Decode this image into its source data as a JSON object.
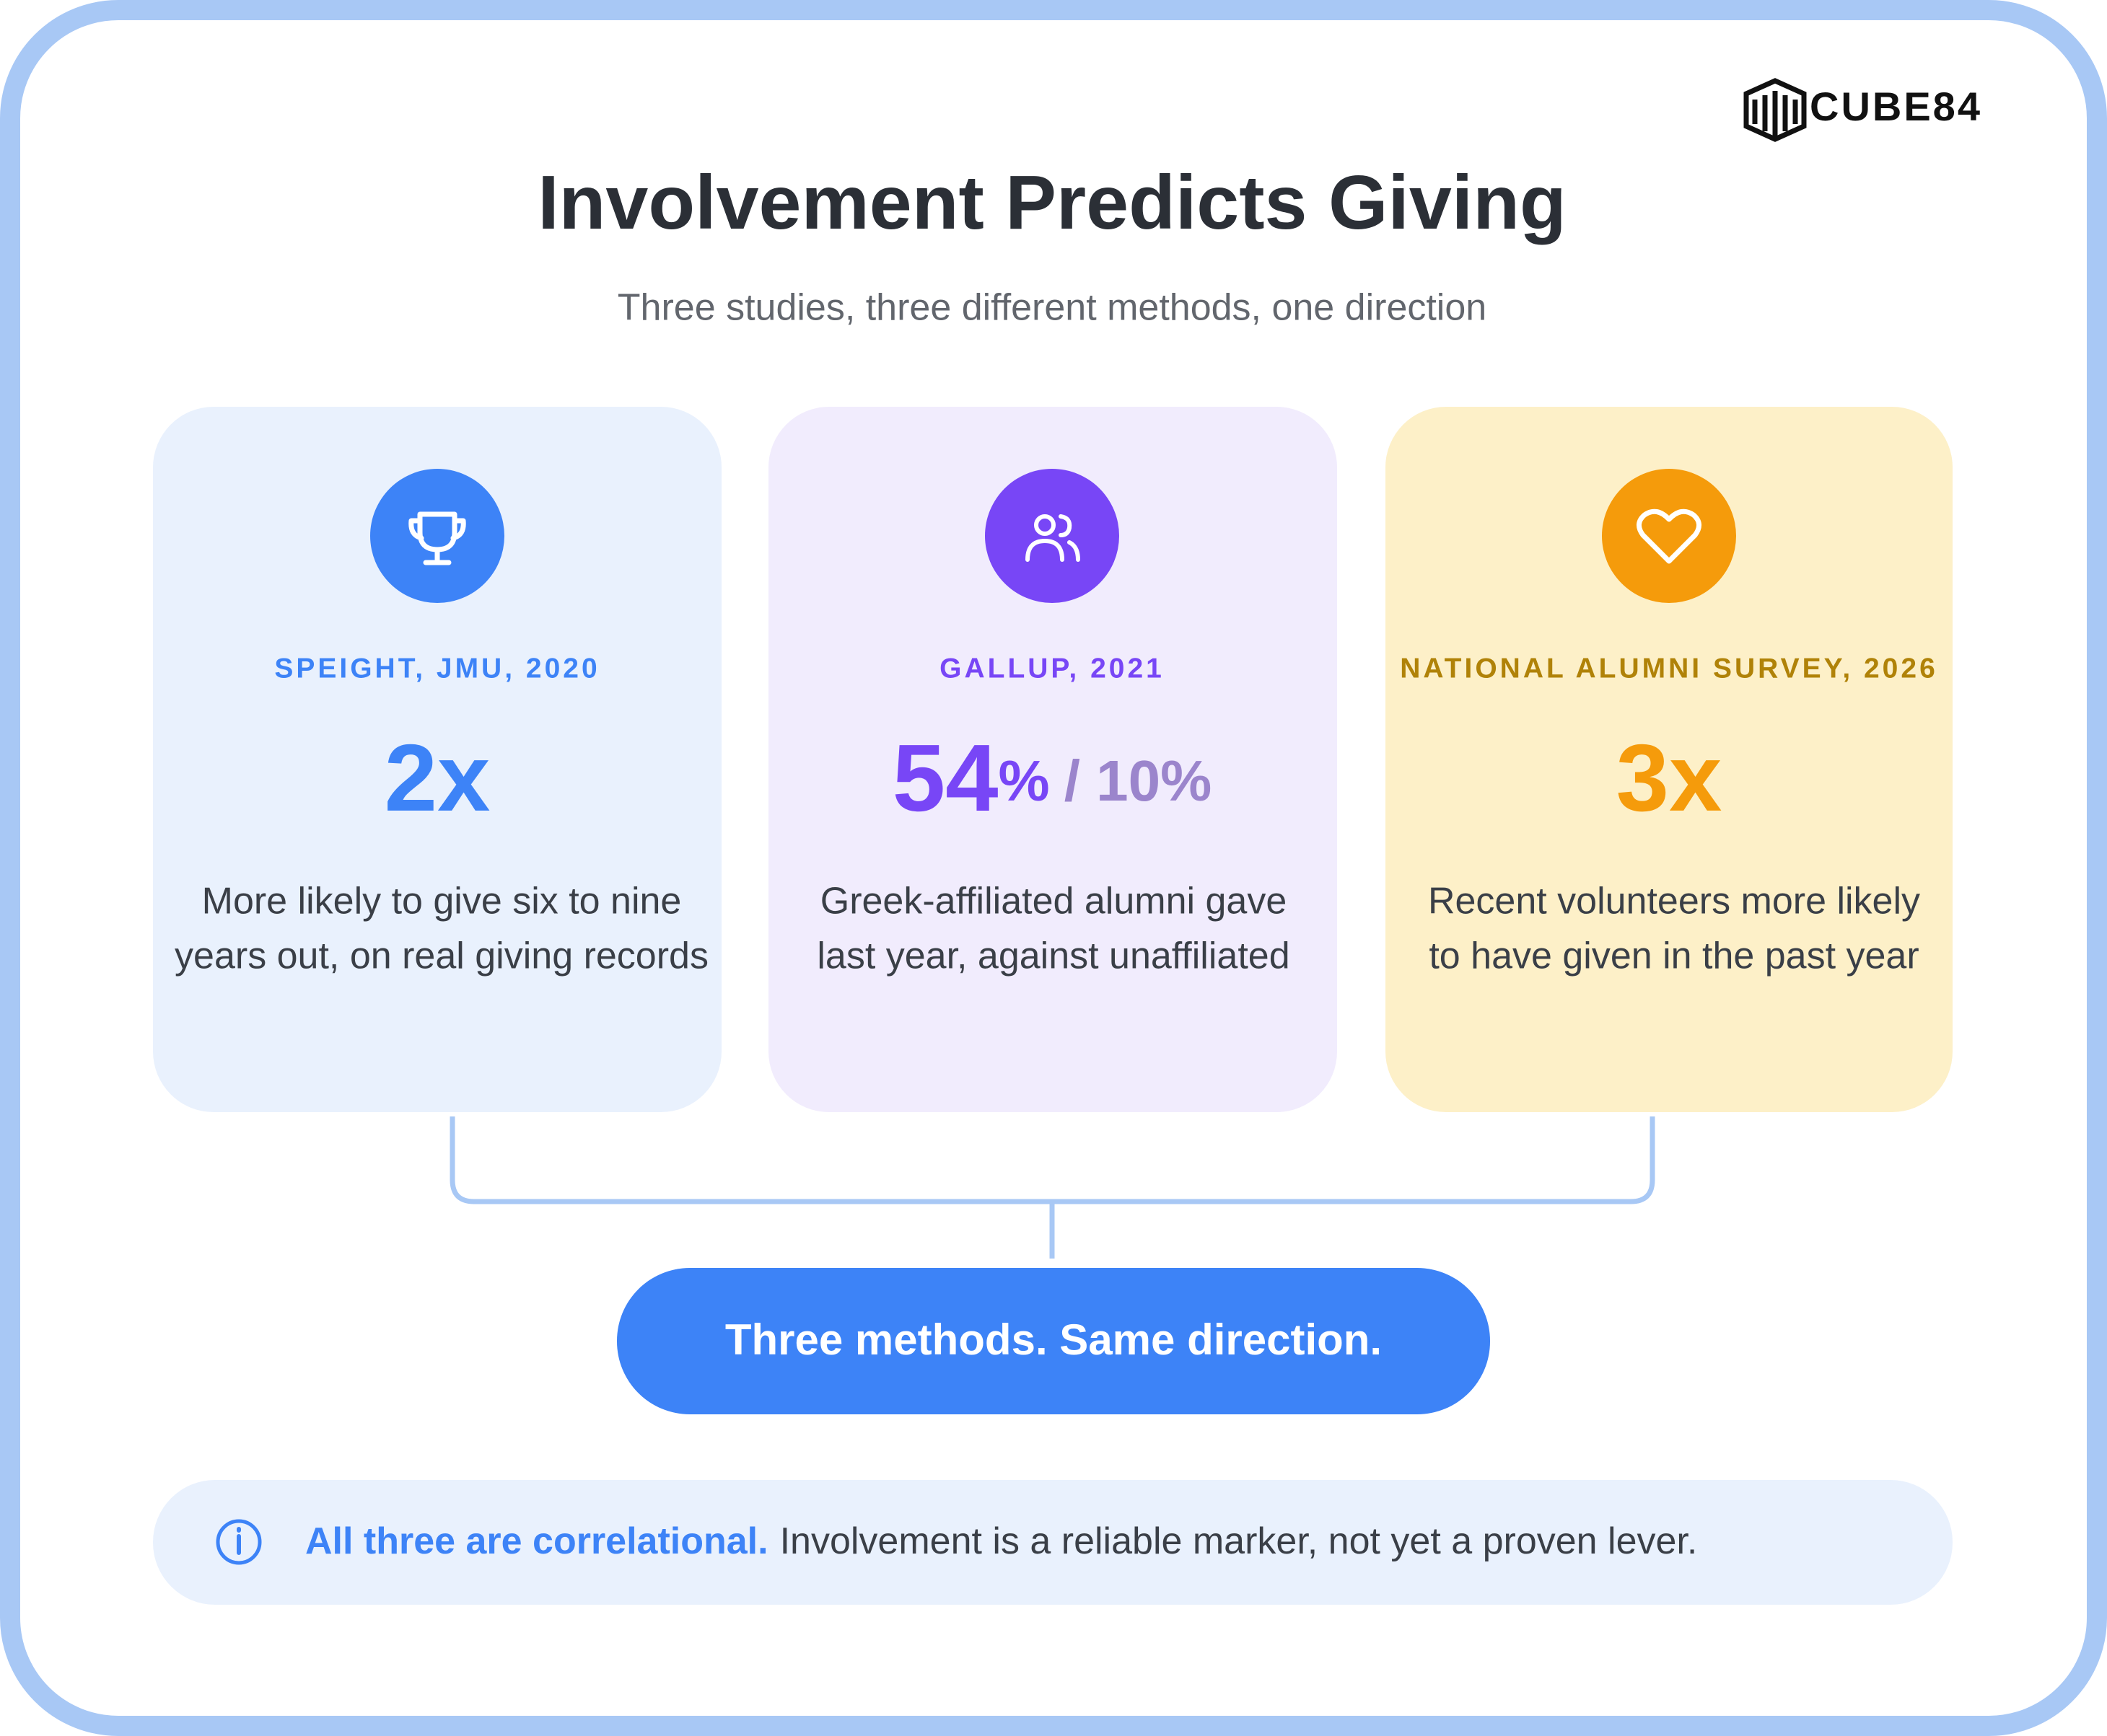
{
  "brand": "CUBE84",
  "header": {
    "title": "Involvement Predicts Giving",
    "subtitle": "Three studies, three different methods, one direction"
  },
  "cards": [
    {
      "source": "SPEIGHT, JMU, 2020",
      "stat": "2x",
      "description_lines": [
        "More likely to give six to nine",
        "years out, on real giving records"
      ]
    },
    {
      "source": "GALLUP, 2021",
      "stat": "54",
      "stat_unit": "%",
      "stat_compare": "/ 10%",
      "description_lines": [
        "Greek-affiliated alumni gave",
        "last year, against unaffiliated"
      ]
    },
    {
      "source": "NATIONAL ALUMNI SURVEY, 2026",
      "stat": "3x",
      "description_lines": [
        "Recent volunteers more likely",
        "to have given in the past year"
      ]
    }
  ],
  "conclusion": "Three methods. Same direction.",
  "note": {
    "emphasis": "All three are correlational.",
    "text": "Involvement is a reliable marker, not yet a proven lever."
  }
}
